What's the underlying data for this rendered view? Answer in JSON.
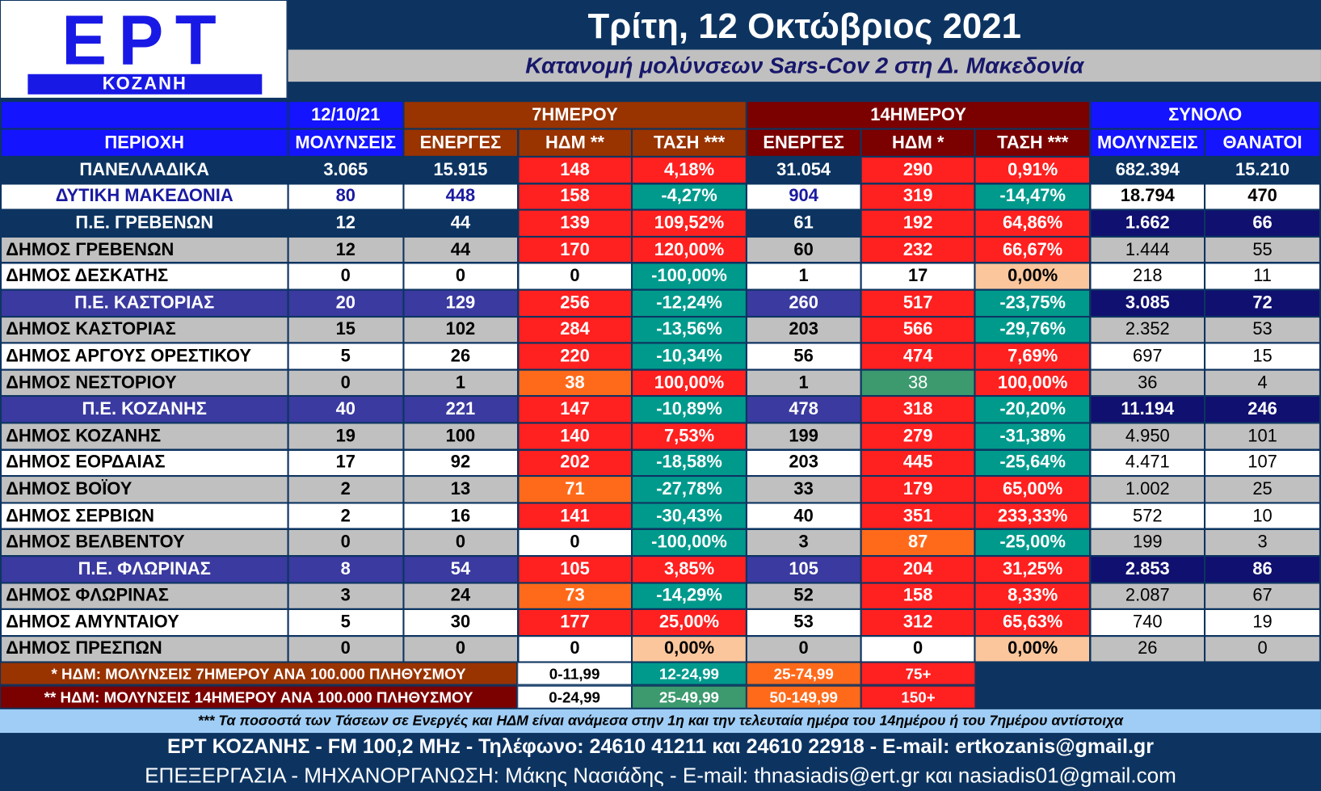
{
  "logo": {
    "big": "ΕΡΤ",
    "small": "ΚΟΖΑΝΗ"
  },
  "date": "Τρίτη, 12 Οκτώβριος 2021",
  "subtitle": "Κατανομή μολύνσεων Sars-Cov 2 στη Δ. Μακεδονία",
  "colors": {
    "red": "#ff2020",
    "orange": "#ff6a1a",
    "green": "#009a8c",
    "teal_light": "#3c9a6e",
    "peach": "#fbc69c",
    "navy": "#0d3461",
    "blue": "#1414ff",
    "purple": "#3a3aa0",
    "grey": "#c0c0c0",
    "white": "#ffffff",
    "brown": "#993300",
    "maroon": "#7b0000",
    "lightblue": "#9fcdf5"
  },
  "chart_data": {
    "type": "table",
    "group_headers": [
      "12/10/21",
      "7ΗΜΕΡΟΥ",
      "14ΗΜΕΡΟΥ",
      "ΣΥΝΟΛΟ"
    ],
    "columns": [
      "ΠΕΡΙΟΧΗ",
      "ΜΟΛΥΝΣΕΙΣ",
      "ΕΝΕΡΓΕΣ",
      "ΗΔΜ **",
      "ΤΑΣΗ ***",
      "ΕΝΕΡΓΕΣ",
      "ΗΔΜ *",
      "ΤΑΣΗ ***",
      "ΜΟΛΥΝΣΕΙΣ",
      "ΘΑΝΑΤΟΙ"
    ],
    "rows": [
      {
        "name": "ΠΑΝΕΛΛΑΔΙΚΑ",
        "cells": [
          "3.065",
          "15.915",
          "148",
          "4,18%",
          "31.054",
          "290",
          "0,91%",
          "682.394",
          "15.210"
        ]
      },
      {
        "name": "ΔΥΤΙΚΗ ΜΑΚΕΔΟΝΙΑ",
        "cells": [
          "80",
          "448",
          "158",
          "-4,27%",
          "904",
          "319",
          "-14,47%",
          "18.794",
          "470"
        ]
      },
      {
        "name": "Π.Ε. ΓΡΕΒΕΝΩΝ",
        "cells": [
          "12",
          "44",
          "139",
          "109,52%",
          "61",
          "192",
          "64,86%",
          "1.662",
          "66"
        ]
      },
      {
        "name": "ΔΗΜΟΣ ΓΡΕΒΕΝΩΝ",
        "cells": [
          "12",
          "44",
          "170",
          "120,00%",
          "60",
          "232",
          "66,67%",
          "1.444",
          "55"
        ]
      },
      {
        "name": "ΔΗΜΟΣ ΔΕΣΚΑΤΗΣ",
        "cells": [
          "0",
          "0",
          "0",
          "-100,00%",
          "1",
          "17",
          "0,00%",
          "218",
          "11"
        ]
      },
      {
        "name": "Π.Ε. ΚΑΣΤΟΡΙΑΣ",
        "cells": [
          "20",
          "129",
          "256",
          "-12,24%",
          "260",
          "517",
          "-23,75%",
          "3.085",
          "72"
        ]
      },
      {
        "name": "ΔΗΜΟΣ ΚΑΣΤΟΡΙΑΣ",
        "cells": [
          "15",
          "102",
          "284",
          "-13,56%",
          "203",
          "566",
          "-29,76%",
          "2.352",
          "53"
        ]
      },
      {
        "name": "ΔΗΜΟΣ ΑΡΓΟΥΣ ΟΡΕΣΤΙΚΟΥ",
        "cells": [
          "5",
          "26",
          "220",
          "-10,34%",
          "56",
          "474",
          "7,69%",
          "697",
          "15"
        ]
      },
      {
        "name": "ΔΗΜΟΣ ΝΕΣΤΟΡΙΟΥ",
        "cells": [
          "0",
          "1",
          "38",
          "100,00%",
          "1",
          "38",
          "100,00%",
          "36",
          "4"
        ]
      },
      {
        "name": "Π.Ε. ΚΟΖΑΝΗΣ",
        "cells": [
          "40",
          "221",
          "147",
          "-10,89%",
          "478",
          "318",
          "-20,20%",
          "11.194",
          "246"
        ]
      },
      {
        "name": "ΔΗΜΟΣ ΚΟΖΑΝΗΣ",
        "cells": [
          "19",
          "100",
          "140",
          "7,53%",
          "199",
          "279",
          "-31,38%",
          "4.950",
          "101"
        ]
      },
      {
        "name": "ΔΗΜΟΣ ΕΟΡΔΑΙΑΣ",
        "cells": [
          "17",
          "92",
          "202",
          "-18,58%",
          "203",
          "445",
          "-25,64%",
          "4.471",
          "107"
        ]
      },
      {
        "name": "ΔΗΜΟΣ ΒΟΪΟΥ",
        "cells": [
          "2",
          "13",
          "71",
          "-27,78%",
          "33",
          "179",
          "65,00%",
          "1.002",
          "25"
        ]
      },
      {
        "name": "ΔΗΜΟΣ ΣΕΡΒΙΩΝ",
        "cells": [
          "2",
          "16",
          "141",
          "-30,43%",
          "40",
          "351",
          "233,33%",
          "572",
          "10"
        ]
      },
      {
        "name": "ΔΗΜΟΣ ΒΕΛΒΕΝΤΟΥ",
        "cells": [
          "0",
          "0",
          "0",
          "-100,00%",
          "3",
          "87",
          "-25,00%",
          "199",
          "3"
        ]
      },
      {
        "name": "Π.Ε. ΦΛΩΡΙΝΑΣ",
        "cells": [
          "8",
          "54",
          "105",
          "3,85%",
          "105",
          "204",
          "31,25%",
          "2.853",
          "86"
        ]
      },
      {
        "name": "ΔΗΜΟΣ ΦΛΩΡΙΝΑΣ",
        "cells": [
          "3",
          "24",
          "73",
          "-14,29%",
          "52",
          "158",
          "8,33%",
          "2.087",
          "67"
        ]
      },
      {
        "name": "ΔΗΜΟΣ ΑΜΥΝΤΑΙΟΥ",
        "cells": [
          "5",
          "30",
          "177",
          "25,00%",
          "53",
          "312",
          "65,63%",
          "740",
          "19"
        ]
      },
      {
        "name": "ΔΗΜΟΣ ΠΡΕΣΠΩΝ",
        "cells": [
          "0",
          "0",
          "0",
          "0,00%",
          "0",
          "0",
          "0,00%",
          "26",
          "0"
        ]
      }
    ]
  },
  "legend": {
    "row1": {
      "label": "* ΗΔΜ: ΜΟΛΥΝΣΕΙΣ 7ΗΜΕΡΟΥ ΑΝΑ 100.000 ΠΛΗΘΥΣΜΟΥ",
      "ranges": [
        "0-11,99",
        "12-24,99",
        "25-74,99",
        "75+"
      ]
    },
    "row2": {
      "label": "** ΗΔΜ: ΜΟΛΥΝΣΕΙΣ 14ΗΜΕΡΟΥ ΑΝΑ 100.000 ΠΛΗΘΥΣΜΟΥ",
      "ranges": [
        "0-24,99",
        "25-49,99",
        "50-149,99",
        "150+"
      ]
    }
  },
  "note": "*** Τα ποσοστά των Τάσεων σε Ενεργές και ΗΔΜ είναι ανάμεσα στην 1η και την τελευταία ημέρα του 14ημέρου ή του 7ημέρου αντίστοιχα",
  "footer1": "ΕΡΤ ΚΟΖΑΝΗΣ - FM 100,2 MHz - Τηλέφωνο:  24610 41211 και 24610 22918 - E-mail: ertkozanis@gmail.gr",
  "footer2": "ΕΠΕΞΕΡΓΑΣΙΑ  -  ΜΗΧΑΝΟΡΓΑΝΩΣΗ: Μάκης Νασιάδης  -   E-mail: thnasiadis@ert.gr και nasiadis01@gmail.com"
}
